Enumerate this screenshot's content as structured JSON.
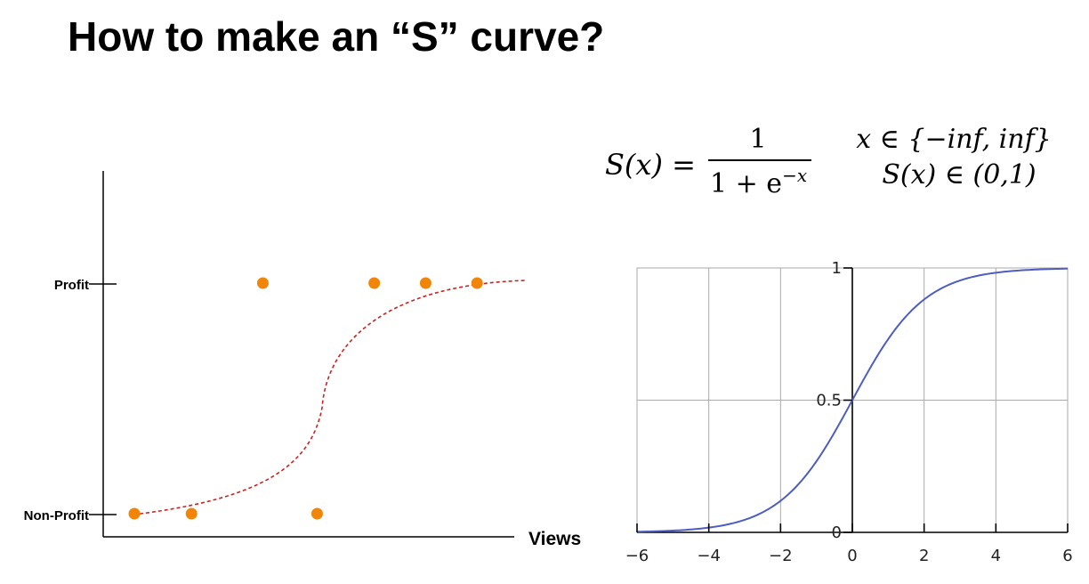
{
  "title": "How to make an “S” curve?",
  "formula": {
    "lhs": "S(x) =",
    "numerator": "1",
    "denominator_base": "1 + e",
    "denominator_exp": "−x",
    "domain": "x ∈ {−inf, inf}",
    "range": "S(x) ∈ (0,1)"
  },
  "chart_data": [
    {
      "type": "scatter",
      "xlabel": "Views",
      "ylabel": "",
      "y_categories": [
        "Non-Profit",
        "Profit"
      ],
      "points": [
        {
          "x": 1,
          "y": "Non-Profit"
        },
        {
          "x": 2,
          "y": "Non-Profit"
        },
        {
          "x": 3.25,
          "y": "Profit"
        },
        {
          "x": 4.2,
          "y": "Non-Profit"
        },
        {
          "x": 5.2,
          "y": "Profit"
        },
        {
          "x": 6.1,
          "y": "Profit"
        },
        {
          "x": 7,
          "y": "Profit"
        }
      ],
      "fit_curve": "dashed S-shaped curve from Non-Profit to Profit",
      "colors": {
        "points": "#f0850a",
        "curve": "#cc2222",
        "axis": "#000000"
      }
    },
    {
      "type": "line",
      "function": "1/(1+e^-x)",
      "xlim": [
        -6,
        6
      ],
      "ylim": [
        0,
        1
      ],
      "xticks": [
        -6,
        -4,
        -2,
        0,
        2,
        4,
        6
      ],
      "xtick_labels": [
        "−6",
        "−4",
        "−2",
        "0",
        "2",
        "4",
        "6"
      ],
      "yticks": [
        0,
        0.5,
        1
      ],
      "ytick_labels": [
        "0",
        "0.5",
        "1"
      ],
      "grid": true,
      "colors": {
        "line": "#4d5dc0",
        "grid": "#aaaaaa",
        "axis": "#000000"
      }
    }
  ]
}
